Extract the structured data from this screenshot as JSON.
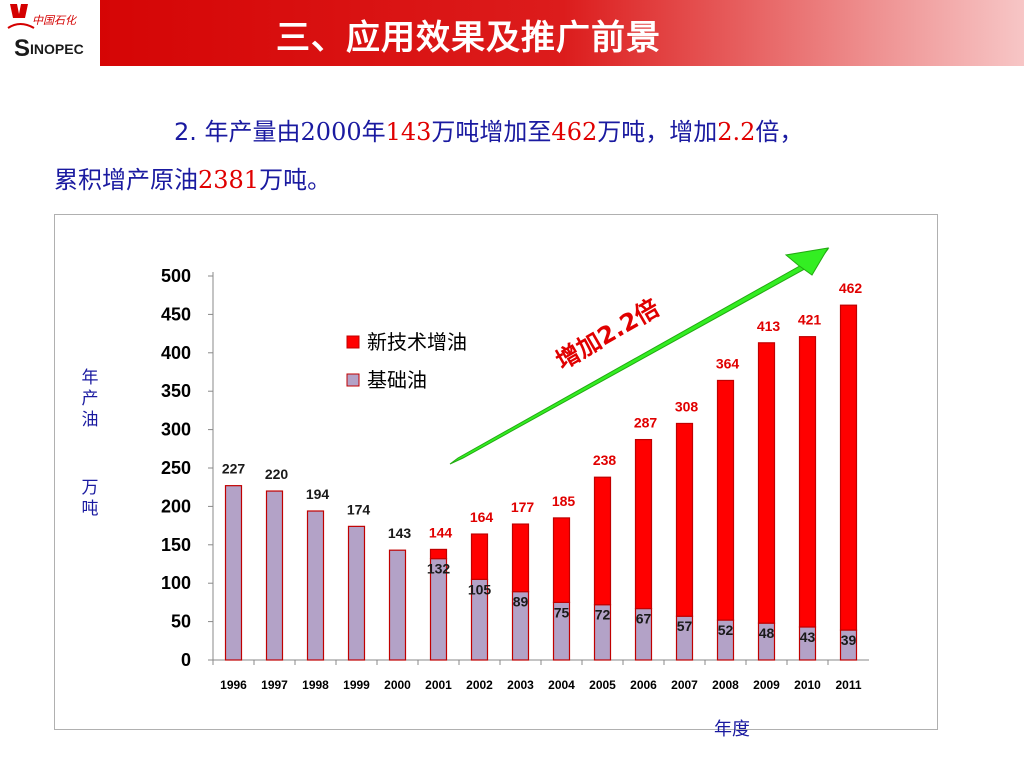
{
  "header": {
    "title": "三、应用效果及推广前景",
    "logo_text": "SINOPEC"
  },
  "summary": {
    "line1_prefix": "2. 年产量由",
    "year": "2000",
    "line1_mid1": "年",
    "v_start": "143",
    "line1_mid2": "万吨增加至",
    "v_end": "462",
    "line1_mid3": "万吨，增加",
    "factor": "2.2",
    "line1_suffix": "倍，",
    "line2_prefix": "累积增产原油",
    "cumulative": "2381",
    "line2_suffix": "万吨。"
  },
  "axis": {
    "ylabel_top": "年产油",
    "ylabel_bottom": "万吨",
    "xlabel": "年度"
  },
  "annotation": {
    "text": "增加2.2倍"
  },
  "colors": {
    "new_tech": "#ff0000",
    "base": "#b3a2c7",
    "bar_border": "#c00000",
    "arrow": "#33ee22",
    "text_blue": "#1a1aa0",
    "text_red": "#e00000"
  },
  "chart_data": {
    "type": "bar",
    "stacked": true,
    "categories": [
      "1996",
      "1997",
      "1998",
      "1999",
      "2000",
      "2001",
      "2002",
      "2003",
      "2004",
      "2005",
      "2006",
      "2007",
      "2008",
      "2009",
      "2010",
      "2011"
    ],
    "series": [
      {
        "name": "基础油",
        "values": [
          227,
          220,
          194,
          174,
          143,
          132,
          105,
          89,
          75,
          72,
          67,
          57,
          52,
          48,
          43,
          39
        ]
      },
      {
        "name": "新技术增油",
        "values": [
          0,
          0,
          0,
          0,
          0,
          12,
          59,
          88,
          110,
          166,
          220,
          251,
          312,
          365,
          378,
          423
        ]
      }
    ],
    "total_labels": [
      "227",
      "220",
      "194",
      "174",
      "143",
      "144",
      "164",
      "177",
      "185",
      "238",
      "287",
      "308",
      "364",
      "413",
      "421",
      "462"
    ],
    "base_labels": [
      "",
      "",
      "",
      "",
      "",
      "132",
      "105",
      "89",
      "75",
      "72",
      "67",
      "57",
      "52",
      "48",
      "43",
      "39"
    ],
    "ylim": [
      0,
      500
    ],
    "yticks": [
      0,
      50,
      100,
      150,
      200,
      250,
      300,
      350,
      400,
      450,
      500
    ],
    "legend": [
      "新技术增油",
      "基础油"
    ],
    "legend_position": "top-left",
    "grid": false
  }
}
